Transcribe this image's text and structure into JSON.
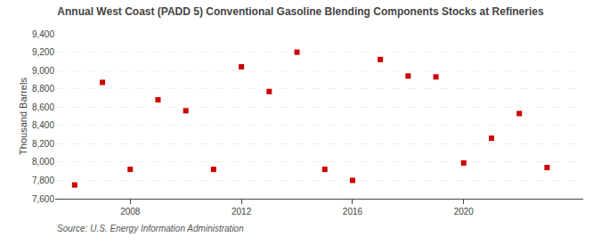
{
  "chart_data": {
    "type": "scatter",
    "title": "Annual West Coast (PADD 5) Conventional Gasoline Blending Components Stocks at Refineries",
    "ylabel": "Thousand Barrels",
    "annotations": [
      "Source: U.S. Energy Information Administration"
    ],
    "x": [
      2006,
      2007,
      2008,
      2009,
      2010,
      2011,
      2012,
      2013,
      2014,
      2015,
      2016,
      2017,
      2018,
      2019,
      2020,
      2021,
      2022,
      2023
    ],
    "values": [
      7750,
      8870,
      7920,
      8680,
      8560,
      7920,
      9040,
      8770,
      9200,
      7920,
      7800,
      9120,
      8940,
      8930,
      7990,
      8260,
      8530,
      7940
    ],
    "color": "#cc0000",
    "marker": "square",
    "xlim": [
      2005.3,
      2024.3
    ],
    "xticks": [
      2008,
      2012,
      2016,
      2020
    ],
    "ylim": [
      7600,
      9400
    ],
    "yticks": [
      {
        "value": 7600,
        "label": "7,600"
      },
      {
        "value": 7800,
        "label": "7,800"
      },
      {
        "value": 8000,
        "label": "8,000"
      },
      {
        "value": 8200,
        "label": "8,200"
      },
      {
        "value": 8400,
        "label": "8,400"
      },
      {
        "value": 8600,
        "label": "8,600"
      },
      {
        "value": 8800,
        "label": "8,800"
      },
      {
        "value": 9000,
        "label": "9,000"
      },
      {
        "value": 9200,
        "label": "9,200"
      },
      {
        "value": 9400,
        "label": "9,400"
      }
    ],
    "grid": true
  }
}
